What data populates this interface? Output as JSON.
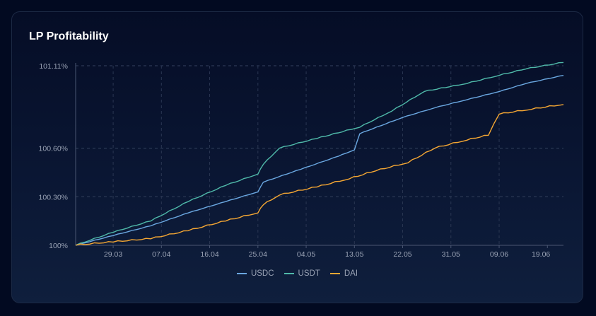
{
  "chart_data": {
    "type": "line",
    "title": "LP Profitability",
    "x_tick_labels": [
      "29.03",
      "07.04",
      "16.04",
      "25.04",
      "04.05",
      "13.05",
      "22.05",
      "31.05",
      "09.06",
      "19.06"
    ],
    "y_tick_labels": [
      "101.11%",
      "100.60%",
      "100.30%",
      "100%"
    ],
    "y_tick_values": [
      101.11,
      100.6,
      100.3,
      100.0
    ],
    "ylim": [
      100.0,
      101.11
    ],
    "x_range_days": [
      -7,
      84
    ],
    "grid": true,
    "legend_position": "bottom",
    "series": [
      {
        "name": "USDC",
        "color": "#6aa7e0",
        "points": [
          [
            -7,
            100.0
          ],
          [
            0,
            100.06
          ],
          [
            7,
            100.12
          ],
          [
            14,
            100.2
          ],
          [
            21,
            100.27
          ],
          [
            27,
            100.33
          ],
          [
            28,
            100.39
          ],
          [
            35,
            100.47
          ],
          [
            42,
            100.55
          ],
          [
            45,
            100.59
          ],
          [
            46,
            100.69
          ],
          [
            54,
            100.79
          ],
          [
            60,
            100.85
          ],
          [
            66,
            100.9
          ],
          [
            72,
            100.95
          ],
          [
            77,
            101.0
          ],
          [
            84,
            101.05
          ]
        ]
      },
      {
        "name": "USDT",
        "color": "#4fb9a9",
        "points": [
          [
            -7,
            100.0
          ],
          [
            0,
            100.08
          ],
          [
            7,
            100.15
          ],
          [
            14,
            100.27
          ],
          [
            21,
            100.37
          ],
          [
            27,
            100.44
          ],
          [
            28,
            100.5
          ],
          [
            31,
            100.6
          ],
          [
            38,
            100.66
          ],
          [
            46,
            100.73
          ],
          [
            52,
            100.83
          ],
          [
            58,
            100.95
          ],
          [
            66,
            101.0
          ],
          [
            72,
            101.05
          ],
          [
            77,
            101.09
          ],
          [
            84,
            101.13
          ]
        ]
      },
      {
        "name": "DAI",
        "color": "#f5a733",
        "points": [
          [
            -7,
            100.0
          ],
          [
            0,
            100.02
          ],
          [
            7,
            100.04
          ],
          [
            14,
            100.09
          ],
          [
            21,
            100.15
          ],
          [
            27,
            100.2
          ],
          [
            28,
            100.25
          ],
          [
            31,
            100.31
          ],
          [
            38,
            100.36
          ],
          [
            44,
            100.41
          ],
          [
            49,
            100.46
          ],
          [
            55,
            100.51
          ],
          [
            60,
            100.6
          ],
          [
            66,
            100.65
          ],
          [
            70,
            100.68
          ],
          [
            72,
            100.81
          ],
          [
            78,
            100.84
          ],
          [
            84,
            100.87
          ]
        ]
      }
    ]
  }
}
